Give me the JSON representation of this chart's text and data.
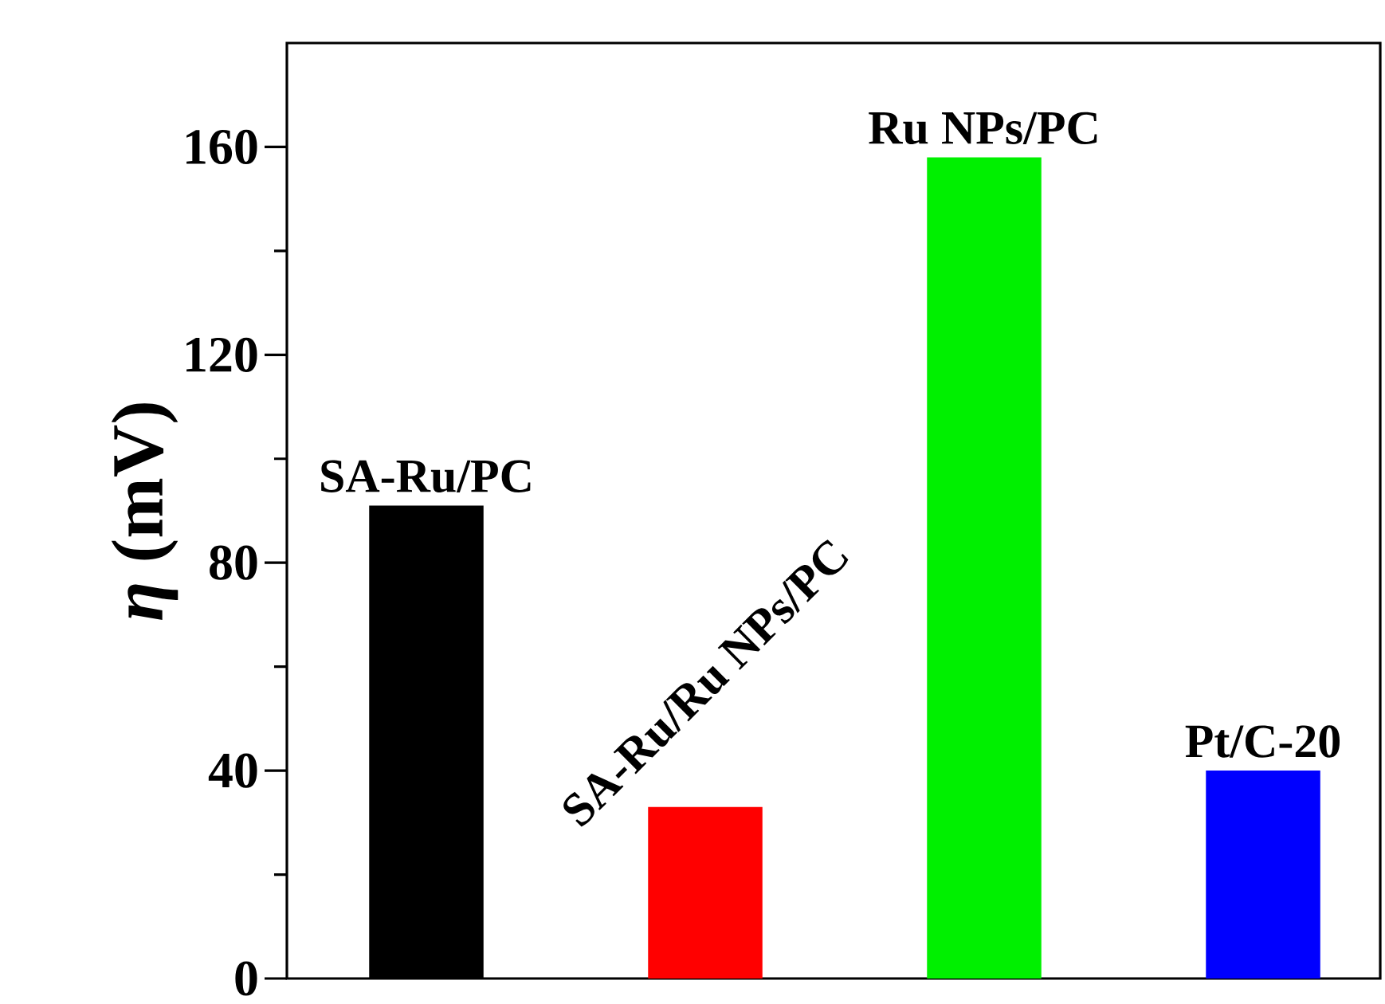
{
  "chart_data": {
    "type": "bar",
    "ylabel": "*η* (mV)",
    "categories": [
      "SA-Ru/PC",
      "SA-Ru/Ru NPs/PC",
      "Ru NPs/PC",
      "Pt/C-20"
    ],
    "values": [
      91,
      33,
      158,
      40
    ],
    "colors": [
      "#000000",
      "#ff0000",
      "#00f000",
      "#0000ff"
    ],
    "ylim": [
      0,
      180
    ],
    "yticks": [
      0,
      40,
      80,
      120,
      160
    ]
  }
}
